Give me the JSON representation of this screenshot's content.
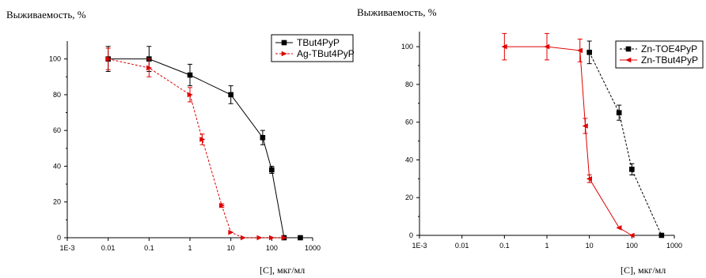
{
  "chart_data": [
    {
      "type": "line",
      "ylabel": "Выживаемость, %",
      "xlabel": "[C], мкг/мл",
      "xscale": "log",
      "xlim": [
        0.001,
        1000
      ],
      "ylim": [
        0,
        110
      ],
      "xticks": [
        "1E-3",
        "0.01",
        "0.1",
        "1",
        "10",
        "100",
        "1000"
      ],
      "yticks": [
        "0",
        "20",
        "40",
        "60",
        "80",
        "100"
      ],
      "legend_position": "top-right",
      "series": [
        {
          "name": "TBut4PyP",
          "color": "#000000",
          "line_style": "solid",
          "marker": "square",
          "x": [
            0.01,
            0.1,
            1,
            10,
            60,
            100,
            200,
            500
          ],
          "y": [
            100,
            100,
            91,
            80,
            56,
            38,
            0,
            0
          ],
          "err": [
            7,
            7,
            6,
            5,
            4,
            2,
            0,
            0
          ]
        },
        {
          "name": "Ag-TBut4PyP",
          "color": "#e00000",
          "line_style": "dashed",
          "marker": "triangle-right",
          "x": [
            0.01,
            0.1,
            1,
            2,
            6,
            10,
            20,
            50,
            100,
            200
          ],
          "y": [
            100,
            95,
            80,
            55,
            18,
            3,
            0,
            0,
            0,
            0
          ],
          "err": [
            6,
            5,
            4,
            3,
            1,
            0,
            0,
            0,
            0,
            0
          ]
        }
      ]
    },
    {
      "type": "line",
      "ylabel": "Выживаемость, %",
      "xlabel": "[C], мкг/мл",
      "xscale": "log",
      "xlim": [
        0.001,
        1000
      ],
      "ylim": [
        0,
        108
      ],
      "xticks": [
        "1E-3",
        "0.01",
        "0.1",
        "1",
        "10",
        "100",
        "1000"
      ],
      "yticks": [
        "0",
        "20",
        "40",
        "60",
        "80",
        "100"
      ],
      "legend_position": "top-right",
      "series": [
        {
          "name": "Zn-TOE4PyP",
          "color": "#000000",
          "line_style": "dashed",
          "marker": "square",
          "x": [
            10,
            50,
            100,
            500
          ],
          "y": [
            97,
            65,
            35,
            0
          ],
          "err": [
            6,
            4,
            3,
            0
          ]
        },
        {
          "name": "Zn-TBut4PyP",
          "color": "#e00000",
          "line_style": "solid",
          "marker": "triangle-left",
          "x": [
            0.1,
            1,
            6,
            8,
            10,
            50,
            100
          ],
          "y": [
            100,
            100,
            98,
            58,
            30,
            4,
            0
          ],
          "err": [
            7,
            7,
            6,
            4,
            2,
            0,
            0
          ]
        }
      ]
    }
  ]
}
